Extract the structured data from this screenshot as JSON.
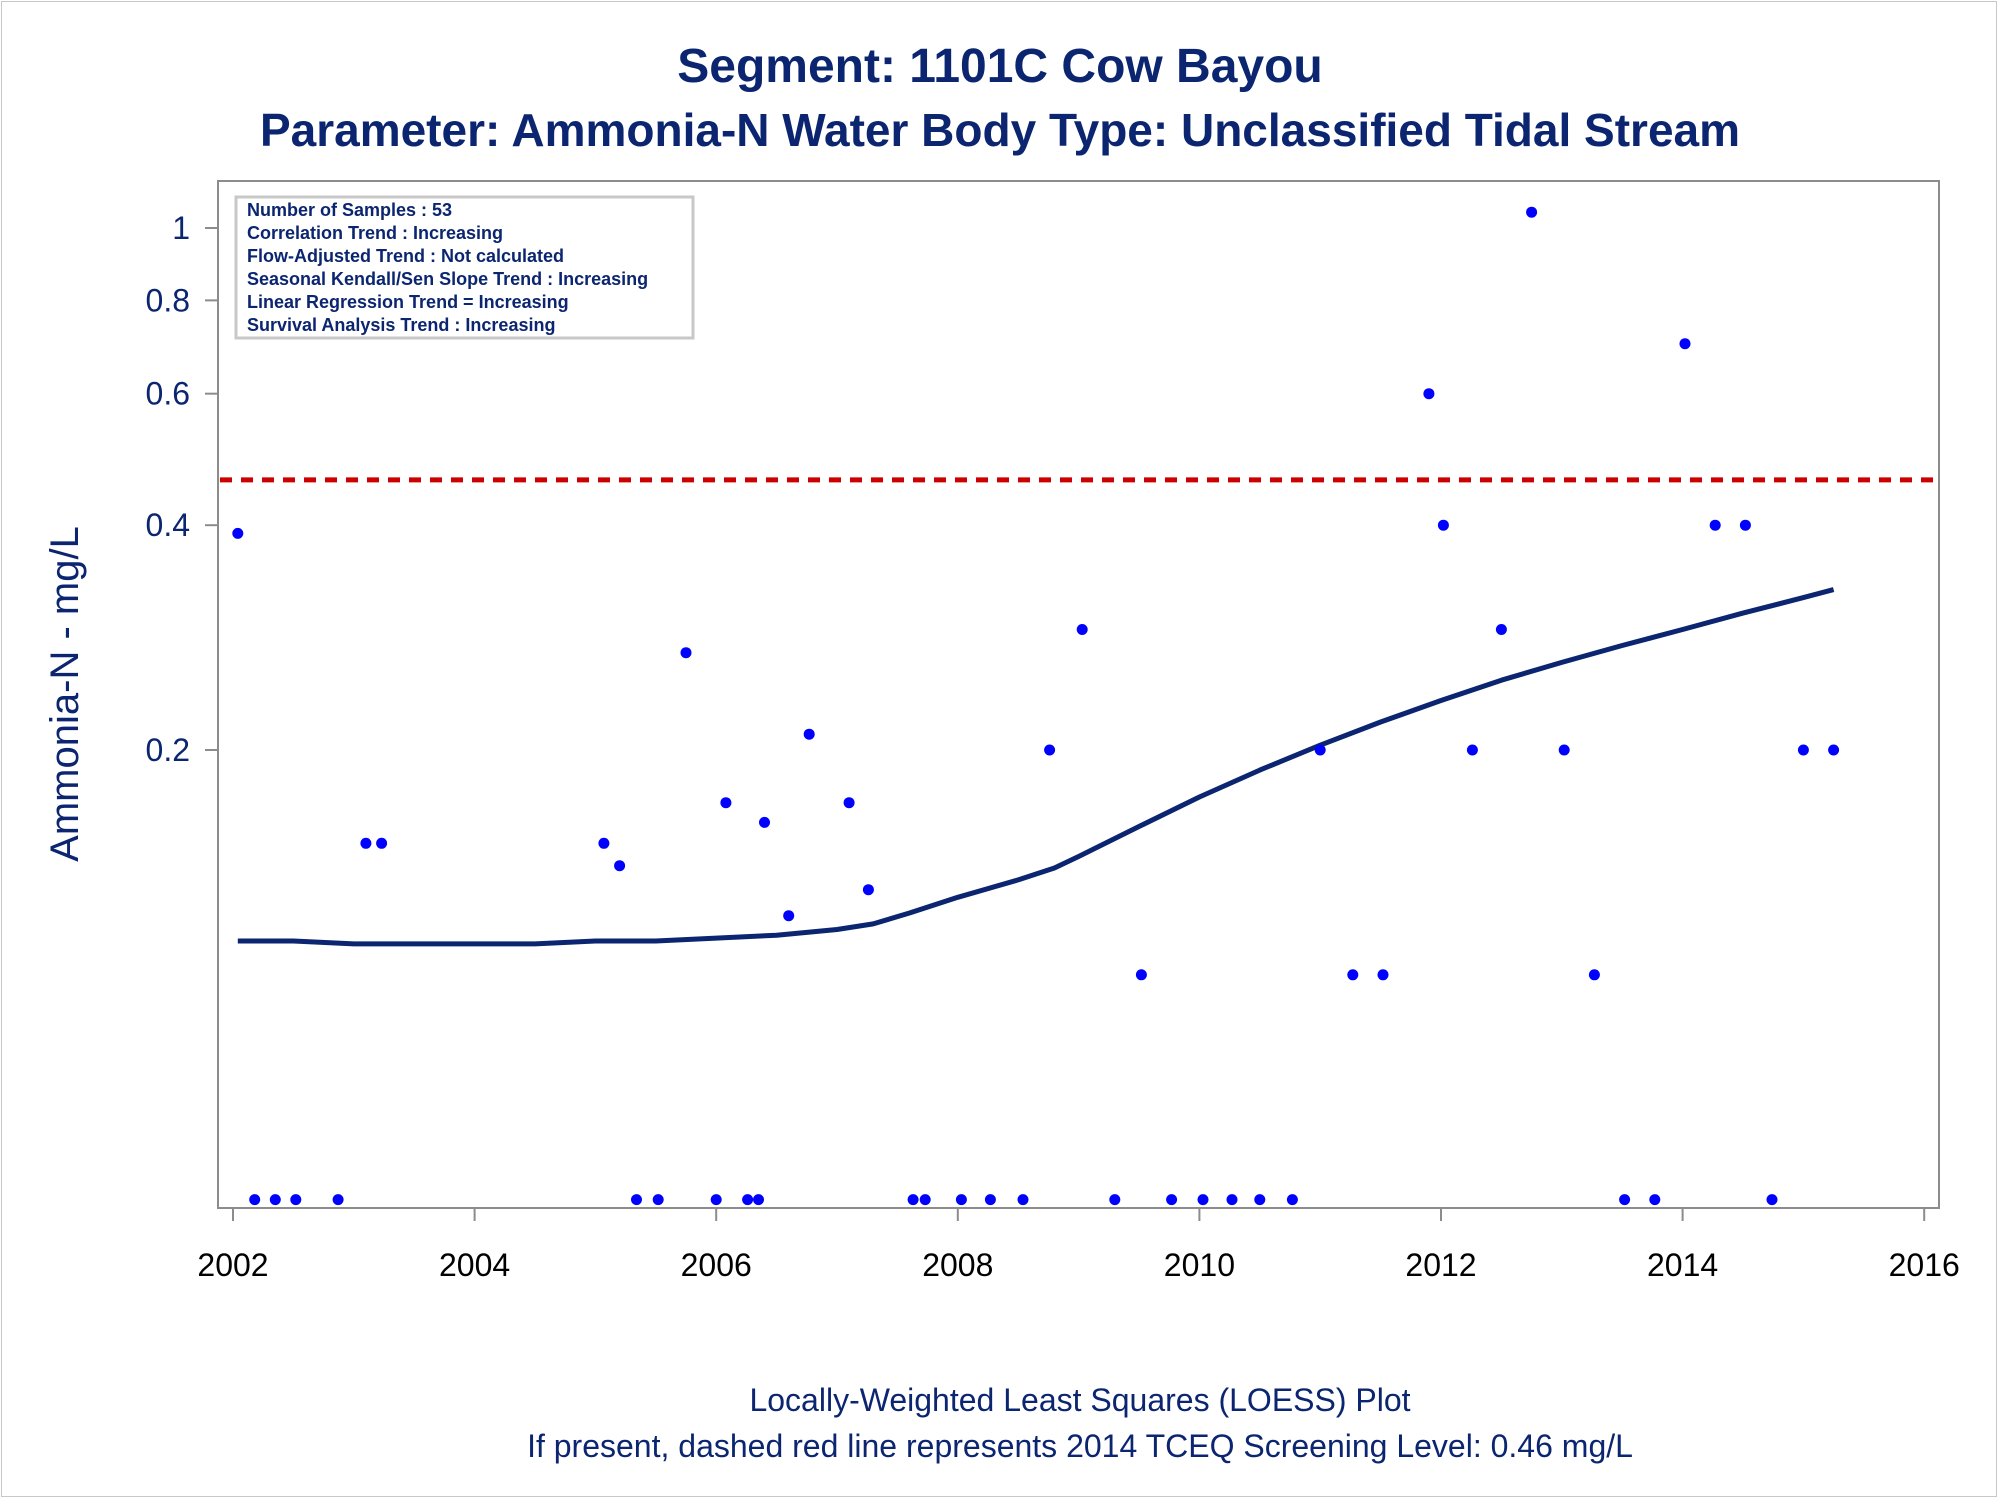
{
  "chart_data": {
    "type": "scatter",
    "title": "Segment: 1101C  Cow Bayou",
    "subtitle": "Parameter: Ammonia-N   Water Body Type: Unclassified Tidal Stream",
    "ylabel": "Ammonia-N - mg/L",
    "xlabel": "",
    "footnotes": [
      "Locally-Weighted Least Squares (LOESS) Plot",
      "If present, dashed red line represents 2014 TCEQ Screening Level: 0.46 mg/L"
    ],
    "y_scale": "log",
    "ylim": [
      0.05,
      1.1
    ],
    "xlim": [
      2002,
      2016
    ],
    "y_ticks": [
      "0.2",
      "0.4",
      "0.6",
      "0.8",
      "1"
    ],
    "x_ticks": [
      "2002",
      "2004",
      "2006",
      "2008",
      "2010",
      "2012",
      "2014",
      "2016"
    ],
    "grid": false,
    "stats_box": [
      "Number of Samples : 53",
      "Correlation Trend : Increasing",
      "Flow-Adjusted Trend : Not calculated",
      "Seasonal Kendall/Sen Slope Trend : Increasing",
      "Linear Regression Trend = Increasing",
      "Survival Analysis Trend : Increasing"
    ],
    "screening_level": {
      "value": 0.46,
      "color": "#cc0000",
      "style": "dashed"
    },
    "series": [
      {
        "type": "scatter",
        "color": "#0000ff",
        "points": [
          [
            2002.04,
            0.39
          ],
          [
            2002.18,
            0.05
          ],
          [
            2002.35,
            0.05
          ],
          [
            2002.52,
            0.05
          ],
          [
            2002.87,
            0.05
          ],
          [
            2003.1,
            0.15
          ],
          [
            2003.23,
            0.15
          ],
          [
            2005.07,
            0.15
          ],
          [
            2005.2,
            0.14
          ],
          [
            2005.34,
            0.05
          ],
          [
            2005.52,
            0.05
          ],
          [
            2005.75,
            0.27
          ],
          [
            2006.0,
            0.05
          ],
          [
            2006.08,
            0.17
          ],
          [
            2006.26,
            0.05
          ],
          [
            2006.35,
            0.05
          ],
          [
            2006.4,
            0.16
          ],
          [
            2006.6,
            0.12
          ],
          [
            2006.77,
            0.21
          ],
          [
            2007.1,
            0.17
          ],
          [
            2007.26,
            0.13
          ],
          [
            2007.63,
            0.05
          ],
          [
            2007.73,
            0.05
          ],
          [
            2008.03,
            0.05
          ],
          [
            2008.27,
            0.05
          ],
          [
            2008.54,
            0.05
          ],
          [
            2008.76,
            0.2
          ],
          [
            2009.03,
            0.29
          ],
          [
            2009.3,
            0.05
          ],
          [
            2009.52,
            0.1
          ],
          [
            2009.77,
            0.05
          ],
          [
            2010.03,
            0.05
          ],
          [
            2010.27,
            0.05
          ],
          [
            2010.5,
            0.05
          ],
          [
            2010.77,
            0.05
          ],
          [
            2011.0,
            0.2
          ],
          [
            2011.27,
            0.1
          ],
          [
            2011.52,
            0.1
          ],
          [
            2011.9,
            0.6
          ],
          [
            2012.02,
            0.4
          ],
          [
            2012.26,
            0.2
          ],
          [
            2012.5,
            0.29
          ],
          [
            2012.75,
            1.05
          ],
          [
            2013.02,
            0.2
          ],
          [
            2013.27,
            0.1
          ],
          [
            2013.52,
            0.05
          ],
          [
            2013.77,
            0.05
          ],
          [
            2014.02,
            0.7
          ],
          [
            2014.27,
            0.4
          ],
          [
            2014.52,
            0.4
          ],
          [
            2014.74,
            0.05
          ],
          [
            2015.0,
            0.2
          ],
          [
            2015.25,
            0.2
          ]
        ]
      },
      {
        "type": "line",
        "name": "LOESS",
        "color": "#0b2570",
        "points": [
          [
            2002.04,
            0.111
          ],
          [
            2002.5,
            0.111
          ],
          [
            2003.0,
            0.11
          ],
          [
            2003.5,
            0.11
          ],
          [
            2004.0,
            0.11
          ],
          [
            2004.5,
            0.11
          ],
          [
            2005.0,
            0.111
          ],
          [
            2005.5,
            0.111
          ],
          [
            2006.0,
            0.112
          ],
          [
            2006.5,
            0.113
          ],
          [
            2007.0,
            0.115
          ],
          [
            2007.3,
            0.117
          ],
          [
            2007.6,
            0.121
          ],
          [
            2008.0,
            0.127
          ],
          [
            2008.5,
            0.134
          ],
          [
            2008.8,
            0.139
          ],
          [
            2009.0,
            0.144
          ],
          [
            2009.5,
            0.158
          ],
          [
            2010.0,
            0.173
          ],
          [
            2010.5,
            0.188
          ],
          [
            2011.0,
            0.203
          ],
          [
            2011.5,
            0.218
          ],
          [
            2012.0,
            0.233
          ],
          [
            2012.5,
            0.248
          ],
          [
            2013.0,
            0.262
          ],
          [
            2013.5,
            0.276
          ],
          [
            2014.0,
            0.29
          ],
          [
            2014.5,
            0.305
          ],
          [
            2015.0,
            0.32
          ],
          [
            2015.25,
            0.328
          ]
        ]
      }
    ]
  }
}
